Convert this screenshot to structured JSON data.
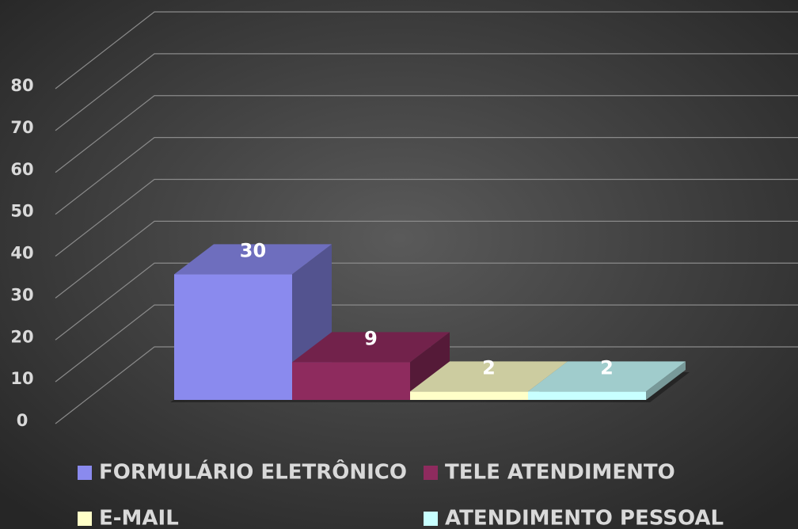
{
  "chart_data": {
    "type": "bar3d",
    "categories": [
      "FORMULÁRIO ELETRÔNICO",
      "TELE ATENDIMENTO",
      "E-MAIL",
      "ATENDIMENTO PESSOAL"
    ],
    "values": [
      30,
      9,
      2,
      2
    ],
    "colors": [
      "#8a8aee",
      "#8e2b5e",
      "#ffffc8",
      "#c8ffff"
    ],
    "ylim": [
      0,
      80
    ],
    "yticks": [
      0,
      10,
      20,
      30,
      40,
      50,
      60,
      70,
      80
    ],
    "grid": true
  }
}
